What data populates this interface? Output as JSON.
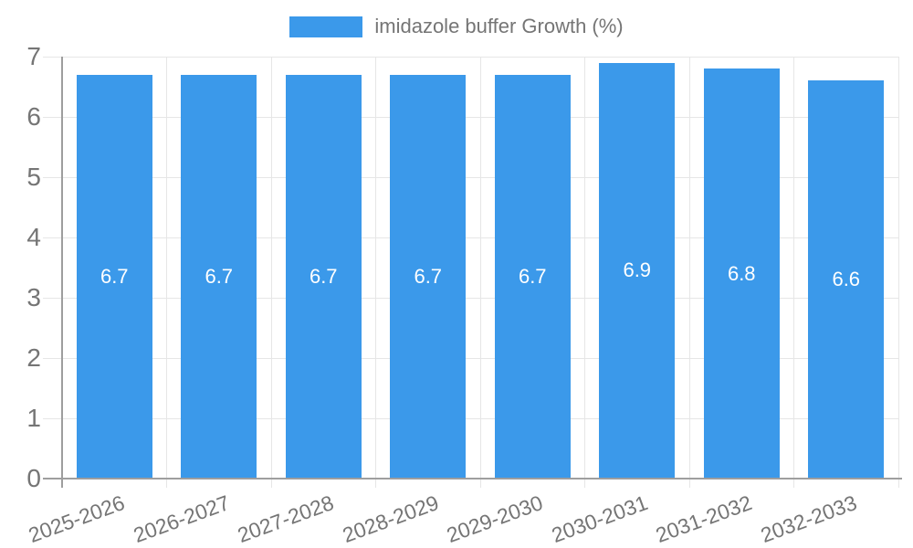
{
  "legend": {
    "label": "imidazole buffer Growth (%)",
    "swatch_color": "#3b99ea"
  },
  "chart_data": {
    "type": "bar",
    "title": "",
    "categories": [
      "2025-2026",
      "2026-2027",
      "2027-2028",
      "2028-2029",
      "2029-2030",
      "2030-2031",
      "2031-2032",
      "2032-2033"
    ],
    "series": [
      {
        "name": "imidazole buffer Growth (%)",
        "values": [
          6.7,
          6.7,
          6.7,
          6.7,
          6.7,
          6.9,
          6.8,
          6.6
        ]
      }
    ],
    "value_labels": [
      "6.7",
      "6.7",
      "6.7",
      "6.7",
      "6.7",
      "6.9",
      "6.8",
      "6.6"
    ],
    "xlabel": "",
    "ylabel": "",
    "ylim": [
      0,
      7
    ],
    "yticks": [
      0,
      1,
      2,
      3,
      4,
      5,
      6,
      7
    ],
    "grid": true,
    "legend_position": "top",
    "x_tick_rotation_deg": -20,
    "colors": {
      "bar": "#3b99ea",
      "bar_value_label": "#ffffff",
      "axis_text": "#757575",
      "grid_line": "#e6e6e6",
      "tick_mark": "#e0e0e0",
      "axis_line": "#9e9e9e",
      "background": "#ffffff"
    }
  }
}
